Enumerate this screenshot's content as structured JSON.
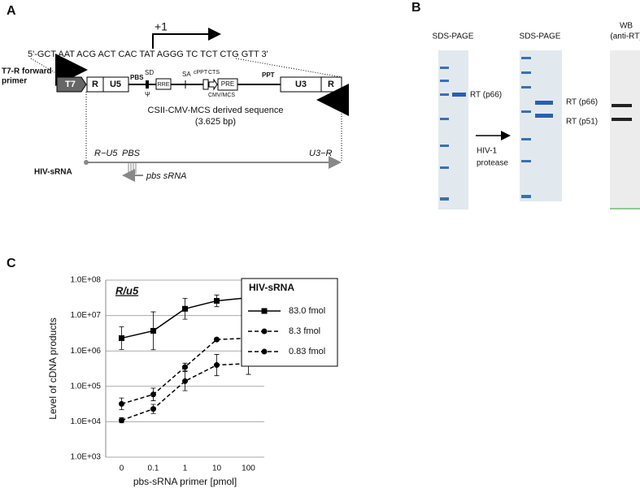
{
  "panel_a": {
    "label": "A",
    "sequence": "5'-GCT AAT ACG ACT CAC TAT AGGG TC TCT CTG GTT 3'",
    "start": "+1",
    "primer": [
      "T7-R forward",
      "primer"
    ],
    "elements": {
      "t7": "T7",
      "r1": "R",
      "u5": "U5",
      "pbs": "PBS",
      "sd": "SD",
      "psi": "Ψ",
      "rre": "RRE",
      "sa": "SA",
      "cppt": "cPPT",
      "cts": "CTS",
      "pre": "PRE",
      "cmv": "CMV/MCS",
      "ppt": "PPT",
      "u3": "U3",
      "r2": "R"
    },
    "construct": [
      "CSII-CMV-MCS derived  sequence",
      "(3.625 bp)"
    ],
    "rna": {
      "r_u5": "R−U5",
      "pbs": "PBS",
      "u3_r": "U3−R",
      "name": "HIV-sRNA",
      "primer": "pbs sRNA"
    }
  },
  "panel_b": {
    "label": "B",
    "gel1": {
      "title": "SDS-PAGE",
      "band": "RT (p66)"
    },
    "arrow": [
      "HIV-1",
      "protease"
    ],
    "gel2": {
      "title": "SDS-PAGE",
      "bands": [
        "RT (p66)",
        "RT (p51)"
      ]
    },
    "wb": {
      "title": [
        "WB",
        "(anti-RT)"
      ]
    }
  },
  "panel_c": {
    "label": "C"
  },
  "chart_data": {
    "type": "line",
    "annotation": "R/u5",
    "x_label": "pbs-sRNA primer [pmol]",
    "y_label": "Level of cDNA products",
    "categories": [
      "0",
      "0.1",
      "1",
      "10",
      "100"
    ],
    "log_y": true,
    "grid": true,
    "ylim": [
      1000,
      100000000
    ],
    "yticks": [
      {
        "value": 1000,
        "label": "1.0E+03"
      },
      {
        "value": 10000,
        "label": "1.0E+04"
      },
      {
        "value": 100000,
        "label": "1.0E+05"
      },
      {
        "value": 1000000,
        "label": "1.0E+06"
      },
      {
        "value": 10000000,
        "label": "1.0E+07"
      },
      {
        "value": 100000000,
        "label": "1.0E+08"
      }
    ],
    "legend_title": "HIV-sRNA",
    "legend": "right",
    "series": [
      {
        "name": "83.0 fmol",
        "color": "#000000",
        "dash": false,
        "marker": "square",
        "values": [
          2300000,
          3700000,
          15500000,
          26000000,
          32000000
        ],
        "errors": [
          2500000,
          9000000,
          15000000,
          12000000,
          4000000
        ]
      },
      {
        "name": "8.3 fmol",
        "color": "#000000",
        "dash": true,
        "marker": "circle",
        "values": [
          32000,
          59000,
          350000,
          2100000,
          2300000
        ],
        "errors": [
          15000,
          30000,
          100000,
          200000,
          200000
        ]
      },
      {
        "name": "0.83 fmol",
        "color": "#000000",
        "dash": true,
        "marker": "circle",
        "values": [
          11000,
          23000,
          140000,
          400000,
          440000
        ],
        "errors": [
          2000,
          8000,
          120000,
          400000,
          450000
        ]
      }
    ]
  }
}
